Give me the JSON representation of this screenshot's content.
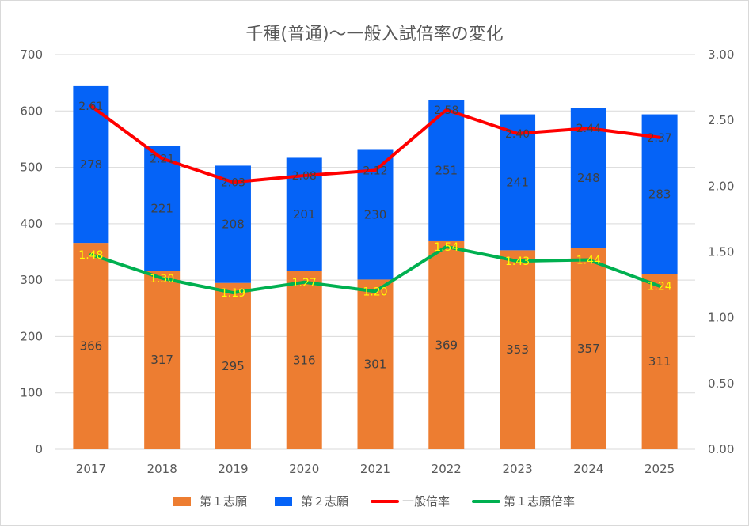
{
  "chart_data": {
    "type": "bar",
    "stacked": true,
    "title": "千種(普通)〜一般入試倍率の変化",
    "categories": [
      "2017",
      "2018",
      "2019",
      "2020",
      "2021",
      "2022",
      "2023",
      "2024",
      "2025"
    ],
    "series": [
      {
        "name": "第１志願",
        "kind": "bar",
        "axis": "left",
        "color": "#ED7D31",
        "label_color": "#404040",
        "values": [
          366,
          317,
          295,
          316,
          301,
          369,
          353,
          357,
          311
        ]
      },
      {
        "name": "第２志願",
        "kind": "bar",
        "axis": "left",
        "color": "#0563F7",
        "label_color": "#404040",
        "values": [
          278,
          221,
          208,
          201,
          230,
          251,
          241,
          248,
          283
        ]
      },
      {
        "name": "一般倍率",
        "kind": "line",
        "axis": "right",
        "color": "#FF0000",
        "label_color": "#404040",
        "values": [
          "2.61",
          "2.21",
          "2.03",
          "2.08",
          "2.12",
          "2.58",
          "2.40",
          "2.44",
          "2.37"
        ]
      },
      {
        "name": "第１志願倍率",
        "kind": "line",
        "axis": "right",
        "color": "#00B050",
        "label_color": "#FFFF00",
        "values": [
          "1.48",
          "1.30",
          "1.19",
          "1.27",
          "1.20",
          "1.54",
          "1.43",
          "1.44",
          "1.24"
        ]
      }
    ],
    "y_left": {
      "min": 0,
      "max": 700,
      "ticks": [
        "0",
        "100",
        "200",
        "300",
        "400",
        "500",
        "600",
        "700"
      ]
    },
    "y_right": {
      "min": 0,
      "max": 3,
      "ticks": [
        "0.00",
        "0.50",
        "1.00",
        "1.50",
        "2.00",
        "2.50",
        "3.00"
      ]
    },
    "grid": true,
    "legend": "bottom"
  }
}
